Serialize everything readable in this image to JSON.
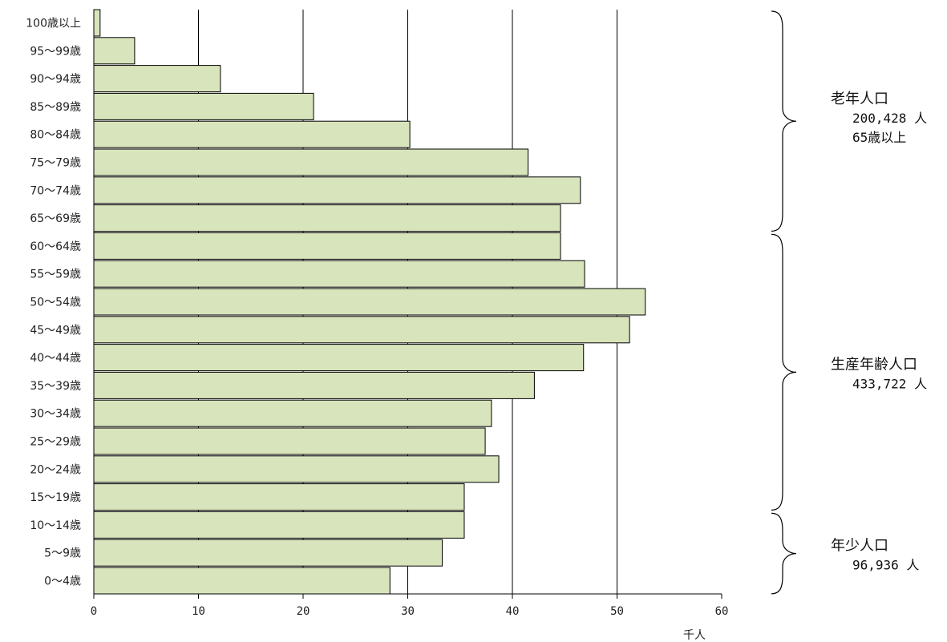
{
  "chart_data": {
    "type": "bar",
    "orientation": "horizontal",
    "categories": [
      "100歳以上",
      "95～99歳",
      "90～94歳",
      "85～89歳",
      "80～84歳",
      "75～79歳",
      "70～74歳",
      "65～69歳",
      "60～64歳",
      "55～59歳",
      "50～54歳",
      "45～49歳",
      "40～44歳",
      "35～39歳",
      "30～34歳",
      "25～29歳",
      "20～24歳",
      "15～19歳",
      "10～14歳",
      "5～9歳",
      "0～4歳"
    ],
    "values": [
      0.6,
      3.9,
      12.1,
      21.0,
      30.2,
      41.5,
      46.5,
      44.6,
      44.6,
      46.9,
      52.7,
      51.2,
      46.8,
      42.1,
      38.0,
      37.4,
      38.7,
      35.4,
      35.4,
      33.3,
      28.3
    ],
    "xlim": [
      0,
      60
    ],
    "x_ticks": [
      0,
      10,
      20,
      30,
      40,
      50,
      60
    ],
    "x_unit": "千人",
    "grid": "vertical",
    "bar_color": "#d8e4bc",
    "bar_edge_color": "#000000",
    "groups": [
      {
        "title": "老年人口",
        "lines": [
          "200,428 人",
          "65歳以上"
        ],
        "from": "100歳以上",
        "to": "65～69歳"
      },
      {
        "title": "生産年齢人口",
        "lines": [
          "433,722 人"
        ],
        "from": "60～64歳",
        "to": "15～19歳"
      },
      {
        "title": "年少人口",
        "lines": [
          "96,936 人"
        ],
        "from": "10～14歳",
        "to": "0～4歳"
      }
    ]
  }
}
